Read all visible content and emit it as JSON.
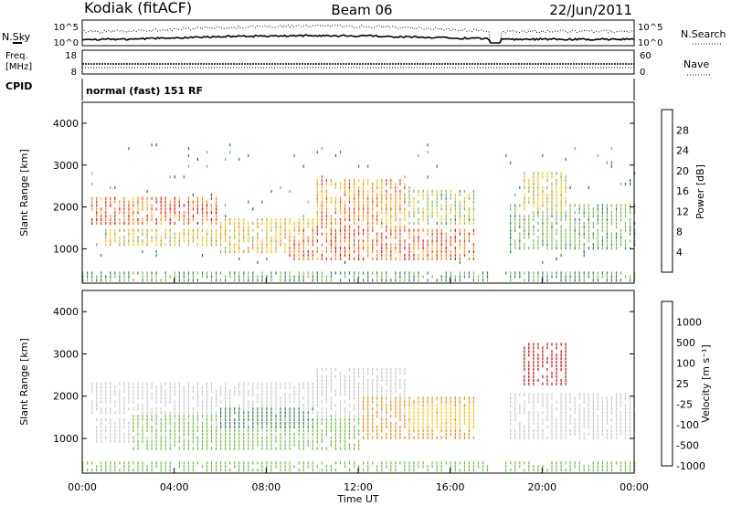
{
  "header": {
    "station": "Kodiak (fitACF)",
    "beam": "Beam 06",
    "date": "22/Jun/2011"
  },
  "noise_panel": {
    "left_label": "N.Sky",
    "right_label": "N.Search",
    "left_ticks": [
      "10^5",
      "10^0"
    ],
    "right_ticks": [
      "10^5",
      "10^0"
    ]
  },
  "freq_panel": {
    "left_label_1": "Freq.",
    "left_label_2": "[MHz]",
    "right_label": "Nave",
    "left_ticks": [
      "18",
      "8"
    ],
    "right_ticks": [
      "60",
      "0"
    ]
  },
  "cpid": {
    "label": "CPID",
    "text": "normal (fast) 151 RF"
  },
  "chart_data": [
    {
      "type": "heatmap",
      "name": "power",
      "ylabel": "Slant Range [km]",
      "xlabel": "",
      "y_ticks": [
        "1000",
        "2000",
        "3000",
        "4000"
      ],
      "ylim": [
        180,
        4500
      ],
      "xlim_hours": [
        0,
        24
      ],
      "colorbar_label": "Power [dB]",
      "colorbar_ticks": [
        "4",
        "8",
        "12",
        "16",
        "20",
        "24",
        "28"
      ],
      "colorbar_range": [
        0,
        30
      ],
      "colorbar_colors": [
        "#0000ff",
        "#1f4fa0",
        "#2e7d5a",
        "#7ab648",
        "#ffc000",
        "#ff8000",
        "#ff3000",
        "#ee0000"
      ],
      "dominant_features": [
        {
          "hours": [
            0.3,
            6
          ],
          "range_km": [
            1500,
            2200
          ],
          "level": "18-28 dB"
        },
        {
          "hours": [
            9,
            17
          ],
          "range_km": [
            700,
            1400
          ],
          "level": "20-28 dB"
        },
        {
          "hours": [
            10,
            14
          ],
          "range_km": [
            1200,
            2600
          ],
          "level": "16-24 dB"
        },
        {
          "hours": [
            18.5,
            24
          ],
          "range_km": [
            900,
            2000
          ],
          "level": "8-16 dB"
        }
      ]
    },
    {
      "type": "heatmap",
      "name": "velocity",
      "ylabel": "Slant Range [km]",
      "xlabel": "Time UT",
      "y_ticks": [
        "1000",
        "2000",
        "3000",
        "4000"
      ],
      "ylim": [
        180,
        4500
      ],
      "x_ticks": [
        "00:00",
        "04:00",
        "08:00",
        "12:00",
        "16:00",
        "20:00",
        "00:00"
      ],
      "colorbar_label": "Velocity [m s⁻¹]",
      "colorbar_ticks": [
        "1000",
        "500",
        "100",
        "25",
        "-25",
        "-100",
        "-500",
        "-1000"
      ],
      "colorbar_colors": [
        "#1f3fbf",
        "#2a7a4a",
        "#66c23a",
        "#c8c8c8",
        "#ffc000",
        "#ff8000",
        "#ff4000",
        "#e00000"
      ],
      "dominant_features": [
        {
          "hours": [
            0.3,
            10
          ],
          "range_km": [
            1500,
            2300
          ],
          "level": "~0 m/s (ground scatter)"
        },
        {
          "hours": [
            2,
            12
          ],
          "range_km": [
            700,
            1500
          ],
          "level": "100-500 m/s"
        },
        {
          "hours": [
            12,
            17
          ],
          "range_km": [
            900,
            1900
          ],
          "level": "-100 to -500 m/s"
        },
        {
          "hours": [
            19,
            21
          ],
          "range_km": [
            2200,
            3200
          ],
          "level": "-500 to -1000 m/s"
        }
      ]
    }
  ]
}
